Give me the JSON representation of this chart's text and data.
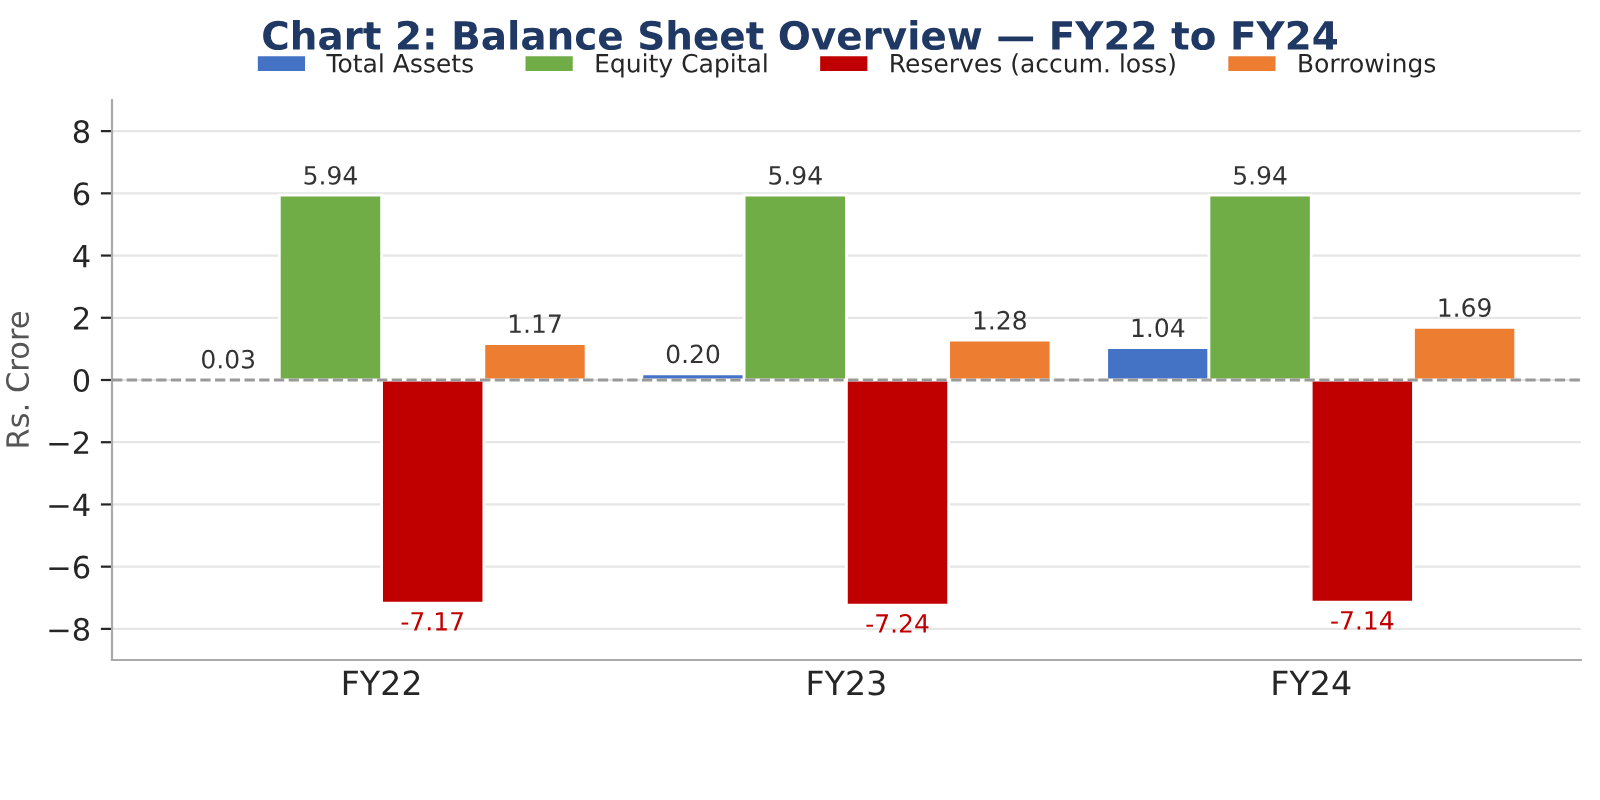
{
  "chart_data": {
    "type": "bar",
    "title": "Chart 2: Balance Sheet Overview — FY22 to FY24",
    "ylabel": "Rs. Crore",
    "categories": [
      "FY22",
      "FY23",
      "FY24"
    ],
    "series": [
      {
        "name": "Total Assets",
        "color": "#4472c4",
        "values": [
          0.03,
          0.2,
          1.04
        ],
        "value_labels": [
          "0.03",
          "0.20",
          "1.04"
        ]
      },
      {
        "name": "Equity Capital",
        "color": "#70ad47",
        "values": [
          5.94,
          5.94,
          5.94
        ],
        "value_labels": [
          "5.94",
          "5.94",
          "5.94"
        ]
      },
      {
        "name": "Reserves (accum. loss)",
        "color": "#c00000",
        "values": [
          -7.17,
          -7.24,
          -7.14
        ],
        "value_labels": [
          "-7.17",
          "-7.24",
          "-7.14"
        ]
      },
      {
        "name": "Borrowings",
        "color": "#ed7d31",
        "values": [
          1.17,
          1.28,
          1.69
        ],
        "value_labels": [
          "1.17",
          "1.28",
          "1.69"
        ]
      }
    ],
    "ylim": [
      -9,
      9
    ],
    "yticks": [
      {
        "value": -8,
        "label": "−8"
      },
      {
        "value": -6,
        "label": "−6"
      },
      {
        "value": -4,
        "label": "−4"
      },
      {
        "value": -2,
        "label": "−2"
      },
      0,
      2,
      4,
      6,
      8
    ],
    "ref_lines": [
      {
        "axis": "y",
        "value": 0,
        "color": "#999999",
        "line_style": "dashed"
      }
    ],
    "grid": "y",
    "legend": "top"
  }
}
